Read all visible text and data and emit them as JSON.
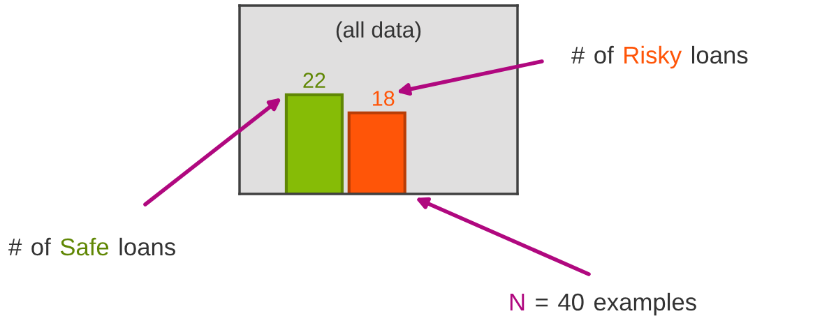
{
  "chart_data": {
    "type": "bar",
    "title": "(all data)",
    "categories": [
      null,
      null
    ],
    "values": [
      22,
      18
    ],
    "colors": [
      "#86bc06",
      "#ff5508"
    ],
    "data_labels": true,
    "tick_labels": false,
    "grid": false,
    "legend": false,
    "annotations": [
      "# of Safe loans",
      "# of Risky loans",
      "N = 40 examples"
    ]
  }
}
